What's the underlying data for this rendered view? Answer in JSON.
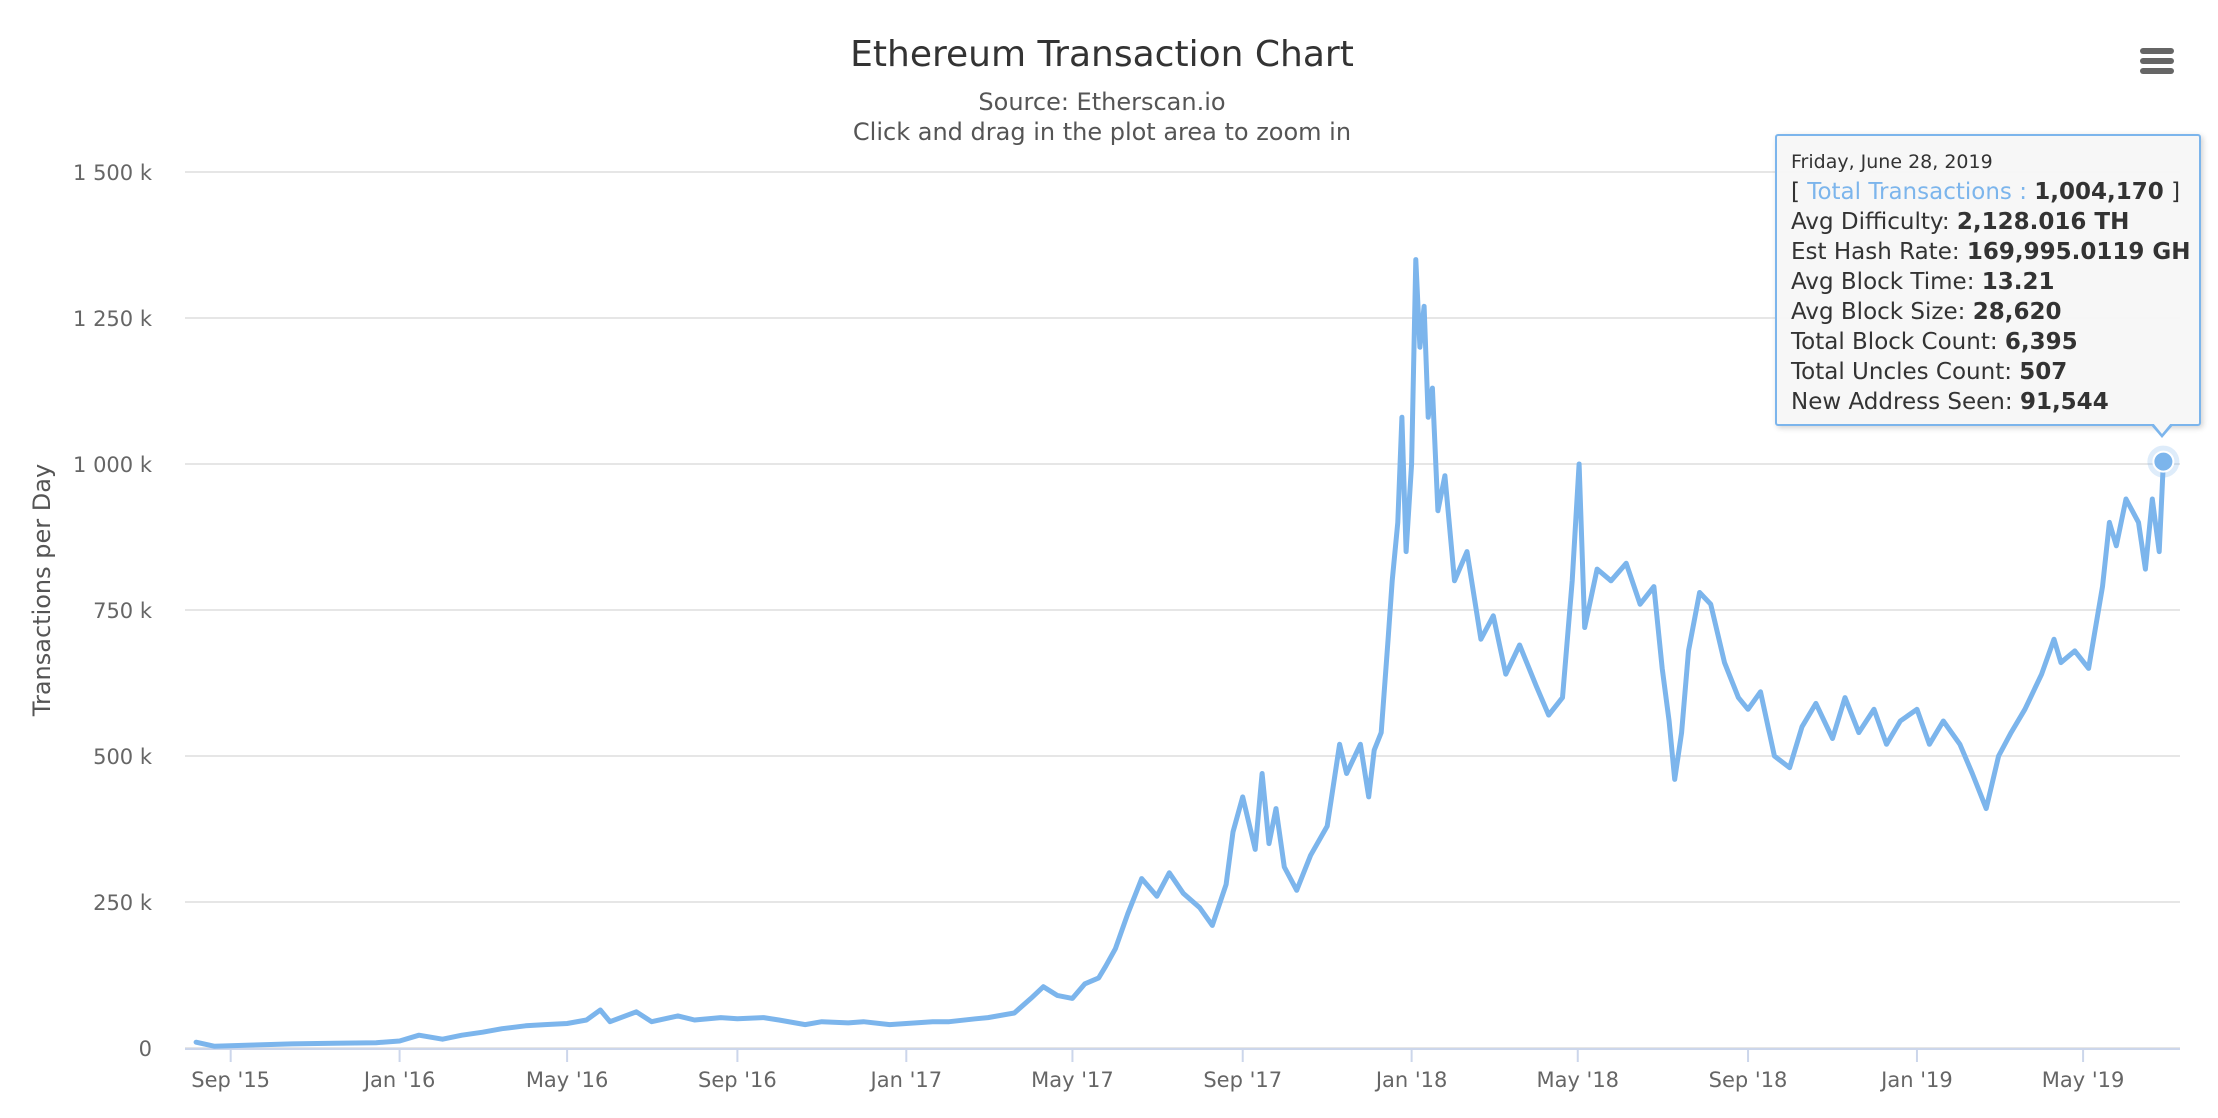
{
  "chart_data": {
    "type": "line",
    "title": "Ethereum Transaction Chart",
    "subtitle": "Source: Etherscan.io",
    "instruction": "Click and drag in the plot area to zoom in",
    "ylabel": "Transactions per Day",
    "xlabel": "",
    "ylim": [
      0,
      1500000
    ],
    "yticks": [
      {
        "value": 0,
        "label": "0"
      },
      {
        "value": 250000,
        "label": "250 k"
      },
      {
        "value": 500000,
        "label": "500 k"
      },
      {
        "value": 750000,
        "label": "750 k"
      },
      {
        "value": 1000000,
        "label": "1 000 k"
      },
      {
        "value": 1250000,
        "label": "1 250 k"
      },
      {
        "value": 1500000,
        "label": "1 500 k"
      }
    ],
    "xlim": [
      "2015-07-30",
      "2019-07-10"
    ],
    "xticks": [
      {
        "date": "2015-09-01",
        "label": "Sep '15"
      },
      {
        "date": "2016-01-01",
        "label": "Jan '16"
      },
      {
        "date": "2016-05-01",
        "label": "May '16"
      },
      {
        "date": "2016-09-01",
        "label": "Sep '16"
      },
      {
        "date": "2017-01-01",
        "label": "Jan '17"
      },
      {
        "date": "2017-05-01",
        "label": "May '17"
      },
      {
        "date": "2017-09-01",
        "label": "Sep '17"
      },
      {
        "date": "2018-01-01",
        "label": "Jan '18"
      },
      {
        "date": "2018-05-01",
        "label": "May '18"
      },
      {
        "date": "2018-09-01",
        "label": "Sep '18"
      },
      {
        "date": "2019-01-01",
        "label": "Jan '19"
      },
      {
        "date": "2019-05-01",
        "label": "May '19"
      }
    ],
    "grid": true,
    "legend": "none",
    "series": [
      {
        "color": "#7cb5ec",
        "points": [
          [
            "2015-08-07",
            10000
          ],
          [
            "2015-08-20",
            3000
          ],
          [
            "2015-09-15",
            5000
          ],
          [
            "2015-10-15",
            7000
          ],
          [
            "2015-11-15",
            8000
          ],
          [
            "2015-12-15",
            9000
          ],
          [
            "2016-01-01",
            12000
          ],
          [
            "2016-01-15",
            22000
          ],
          [
            "2016-02-01",
            15000
          ],
          [
            "2016-02-15",
            22000
          ],
          [
            "2016-03-01",
            27000
          ],
          [
            "2016-03-15",
            33000
          ],
          [
            "2016-04-01",
            38000
          ],
          [
            "2016-04-15",
            40000
          ],
          [
            "2016-05-01",
            42000
          ],
          [
            "2016-05-15",
            48000
          ],
          [
            "2016-05-25",
            65000
          ],
          [
            "2016-06-01",
            45000
          ],
          [
            "2016-06-20",
            62000
          ],
          [
            "2016-07-01",
            45000
          ],
          [
            "2016-07-20",
            55000
          ],
          [
            "2016-08-01",
            48000
          ],
          [
            "2016-08-20",
            52000
          ],
          [
            "2016-09-01",
            50000
          ],
          [
            "2016-09-20",
            52000
          ],
          [
            "2016-10-01",
            48000
          ],
          [
            "2016-10-20",
            40000
          ],
          [
            "2016-11-01",
            45000
          ],
          [
            "2016-11-20",
            43000
          ],
          [
            "2016-12-01",
            45000
          ],
          [
            "2016-12-20",
            40000
          ],
          [
            "2017-01-01",
            42000
          ],
          [
            "2017-01-20",
            45000
          ],
          [
            "2017-02-01",
            45000
          ],
          [
            "2017-02-20",
            50000
          ],
          [
            "2017-03-01",
            52000
          ],
          [
            "2017-03-20",
            60000
          ],
          [
            "2017-04-01",
            85000
          ],
          [
            "2017-04-10",
            105000
          ],
          [
            "2017-04-20",
            90000
          ],
          [
            "2017-05-01",
            85000
          ],
          [
            "2017-05-10",
            110000
          ],
          [
            "2017-05-20",
            120000
          ],
          [
            "2017-05-25",
            140000
          ],
          [
            "2017-06-01",
            170000
          ],
          [
            "2017-06-10",
            230000
          ],
          [
            "2017-06-20",
            290000
          ],
          [
            "2017-07-01",
            260000
          ],
          [
            "2017-07-10",
            300000
          ],
          [
            "2017-07-20",
            265000
          ],
          [
            "2017-08-01",
            240000
          ],
          [
            "2017-08-10",
            210000
          ],
          [
            "2017-08-20",
            280000
          ],
          [
            "2017-08-25",
            370000
          ],
          [
            "2017-09-01",
            430000
          ],
          [
            "2017-09-10",
            340000
          ],
          [
            "2017-09-15",
            470000
          ],
          [
            "2017-09-20",
            350000
          ],
          [
            "2017-09-25",
            410000
          ],
          [
            "2017-10-01",
            310000
          ],
          [
            "2017-10-10",
            270000
          ],
          [
            "2017-10-20",
            330000
          ],
          [
            "2017-11-01",
            380000
          ],
          [
            "2017-11-10",
            520000
          ],
          [
            "2017-11-15",
            470000
          ],
          [
            "2017-11-25",
            520000
          ],
          [
            "2017-12-01",
            430000
          ],
          [
            "2017-12-05",
            510000
          ],
          [
            "2017-12-10",
            540000
          ],
          [
            "2017-12-15",
            700000
          ],
          [
            "2017-12-18",
            800000
          ],
          [
            "2017-12-22",
            900000
          ],
          [
            "2017-12-25",
            1080000
          ],
          [
            "2017-12-28",
            850000
          ],
          [
            "2018-01-01",
            1000000
          ],
          [
            "2018-01-04",
            1350000
          ],
          [
            "2018-01-07",
            1200000
          ],
          [
            "2018-01-10",
            1270000
          ],
          [
            "2018-01-13",
            1080000
          ],
          [
            "2018-01-16",
            1130000
          ],
          [
            "2018-01-20",
            920000
          ],
          [
            "2018-01-25",
            980000
          ],
          [
            "2018-02-01",
            800000
          ],
          [
            "2018-02-10",
            850000
          ],
          [
            "2018-02-20",
            700000
          ],
          [
            "2018-03-01",
            740000
          ],
          [
            "2018-03-10",
            640000
          ],
          [
            "2018-03-20",
            690000
          ],
          [
            "2018-04-01",
            620000
          ],
          [
            "2018-04-10",
            570000
          ],
          [
            "2018-04-20",
            600000
          ],
          [
            "2018-04-27",
            800000
          ],
          [
            "2018-05-02",
            1000000
          ],
          [
            "2018-05-06",
            720000
          ],
          [
            "2018-05-15",
            820000
          ],
          [
            "2018-05-25",
            800000
          ],
          [
            "2018-06-05",
            830000
          ],
          [
            "2018-06-15",
            760000
          ],
          [
            "2018-06-25",
            790000
          ],
          [
            "2018-07-01",
            650000
          ],
          [
            "2018-07-06",
            560000
          ],
          [
            "2018-07-10",
            460000
          ],
          [
            "2018-07-15",
            540000
          ],
          [
            "2018-07-20",
            680000
          ],
          [
            "2018-07-28",
            780000
          ],
          [
            "2018-08-05",
            760000
          ],
          [
            "2018-08-15",
            660000
          ],
          [
            "2018-08-25",
            600000
          ],
          [
            "2018-09-01",
            580000
          ],
          [
            "2018-09-10",
            610000
          ],
          [
            "2018-09-20",
            500000
          ],
          [
            "2018-10-01",
            480000
          ],
          [
            "2018-10-10",
            550000
          ],
          [
            "2018-10-20",
            590000
          ],
          [
            "2018-11-01",
            530000
          ],
          [
            "2018-11-10",
            600000
          ],
          [
            "2018-11-20",
            540000
          ],
          [
            "2018-12-01",
            580000
          ],
          [
            "2018-12-10",
            520000
          ],
          [
            "2018-12-20",
            560000
          ],
          [
            "2019-01-01",
            580000
          ],
          [
            "2019-01-10",
            520000
          ],
          [
            "2019-01-20",
            560000
          ],
          [
            "2019-02-01",
            520000
          ],
          [
            "2019-02-10",
            470000
          ],
          [
            "2019-02-20",
            410000
          ],
          [
            "2019-03-01",
            500000
          ],
          [
            "2019-03-10",
            540000
          ],
          [
            "2019-03-20",
            580000
          ],
          [
            "2019-04-01",
            640000
          ],
          [
            "2019-04-10",
            700000
          ],
          [
            "2019-04-15",
            660000
          ],
          [
            "2019-04-25",
            680000
          ],
          [
            "2019-05-05",
            650000
          ],
          [
            "2019-05-15",
            790000
          ],
          [
            "2019-05-20",
            900000
          ],
          [
            "2019-05-25",
            860000
          ],
          [
            "2019-06-01",
            940000
          ],
          [
            "2019-06-10",
            900000
          ],
          [
            "2019-06-15",
            820000
          ],
          [
            "2019-06-20",
            940000
          ],
          [
            "2019-06-25",
            850000
          ],
          [
            "2019-06-28",
            1004170
          ]
        ]
      }
    ],
    "highlight": {
      "date": "2019-06-28",
      "value": 1004170
    }
  },
  "tooltip": {
    "date": "Friday, June 28, 2019",
    "series_name": "Total Transactions :",
    "series_value": "1,004,170",
    "rows": [
      {
        "label": "Avg Difficulty:",
        "value": "2,128.016 TH"
      },
      {
        "label": "Est Hash Rate:",
        "value": "169,995.0119 GH"
      },
      {
        "label": "Avg Block Time:",
        "value": "13.21"
      },
      {
        "label": "Avg Block Size:",
        "value": "28,620"
      },
      {
        "label": "Total Block Count:",
        "value": "6,395"
      },
      {
        "label": "Total Uncles Count:",
        "value": "507"
      },
      {
        "label": "New Address Seen:",
        "value": "91,544"
      }
    ]
  },
  "menu": {
    "icon": "hamburger-menu-icon"
  }
}
